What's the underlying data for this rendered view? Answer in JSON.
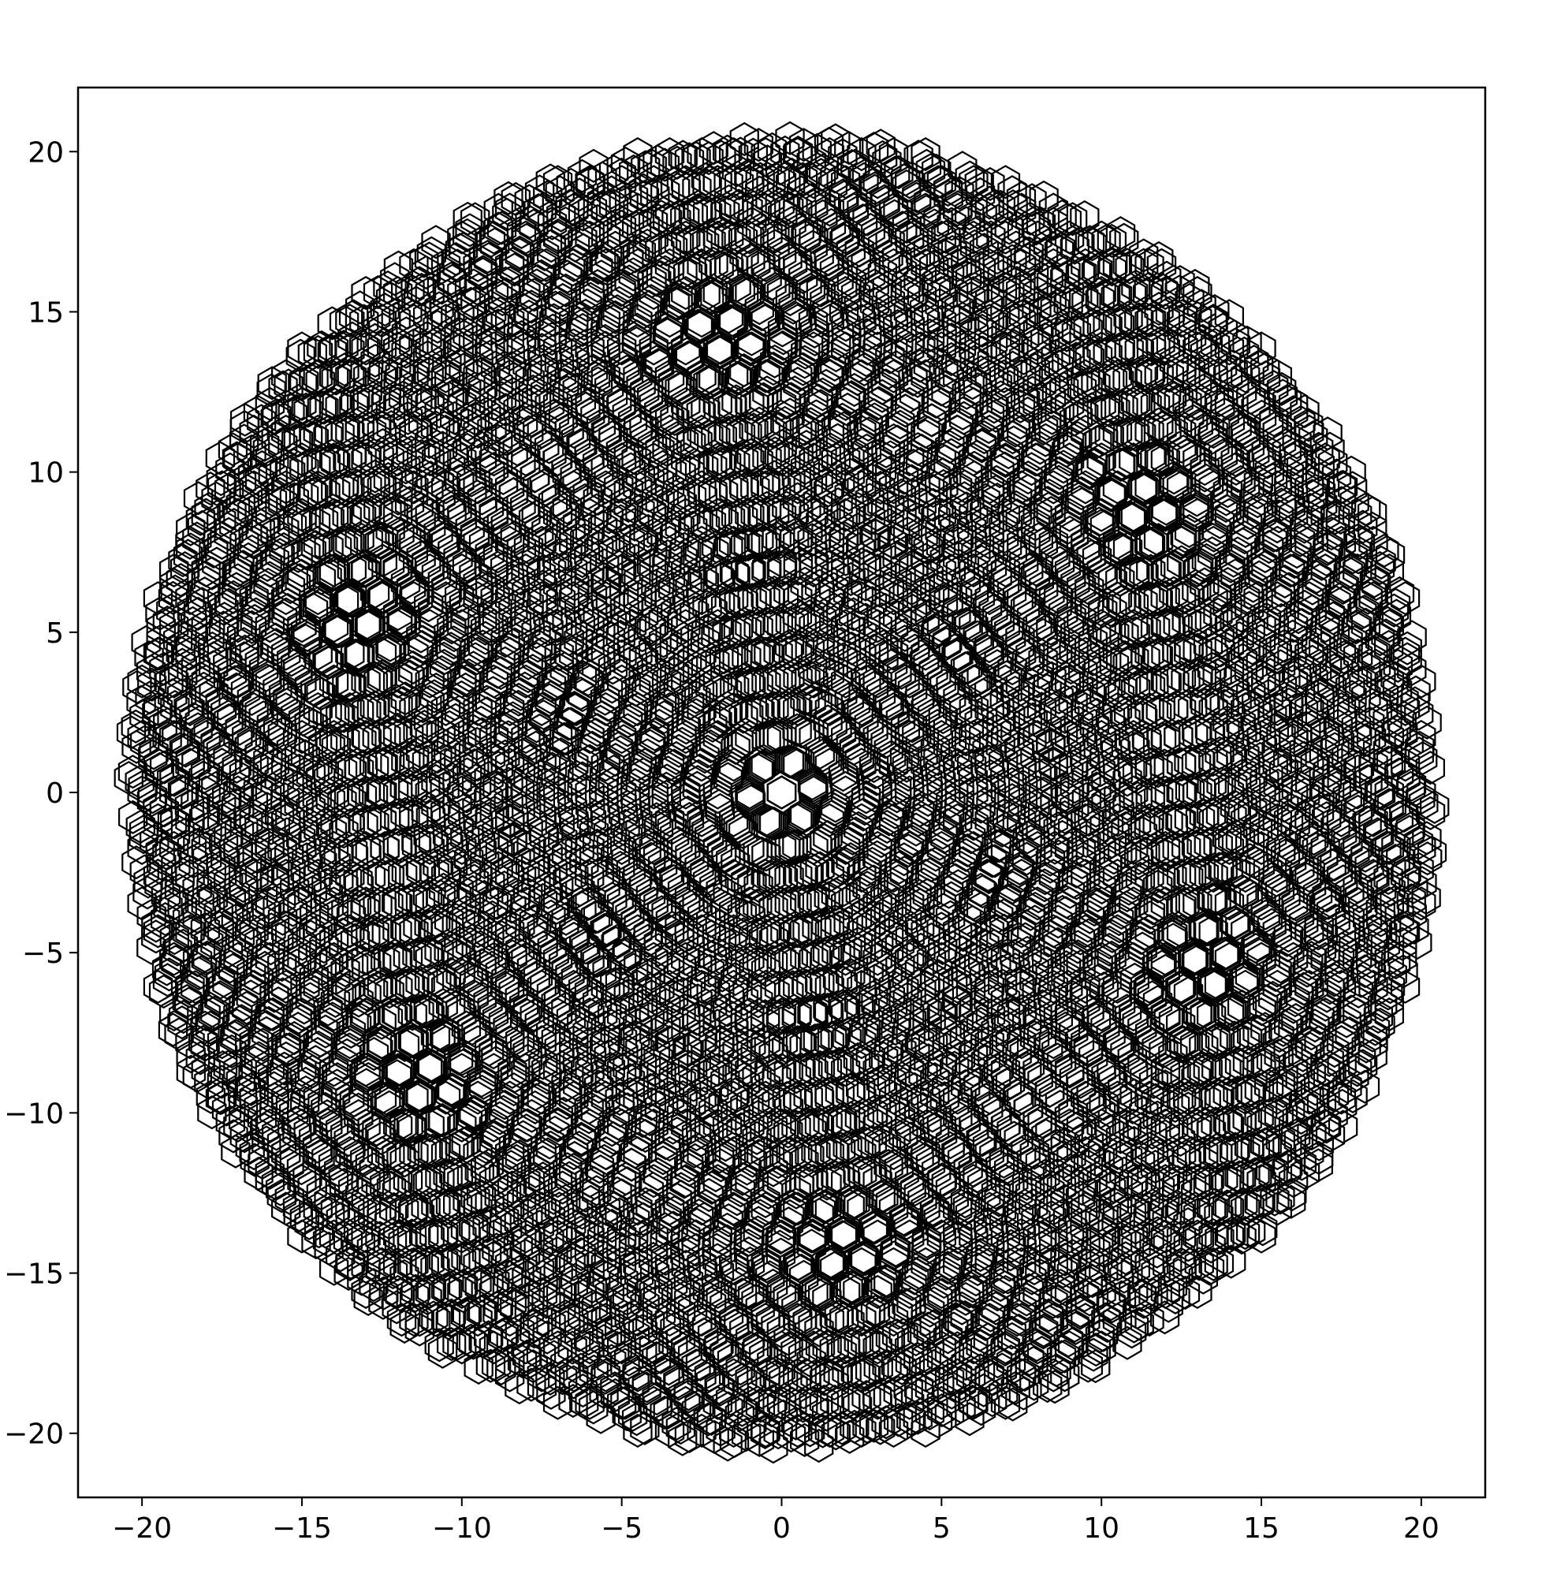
{
  "chart_data": {
    "type": "scatter",
    "marker": "hexagon-outline",
    "marker_color": "#000000",
    "title": "",
    "xlabel": "",
    "ylabel": "",
    "xlim": [
      -22,
      22
    ],
    "ylim": [
      -22,
      22
    ],
    "grid": false,
    "x_ticks": [
      -20,
      -15,
      -10,
      -5,
      0,
      5,
      10,
      15,
      20
    ],
    "y_ticks": [
      -20,
      -15,
      -10,
      -5,
      0,
      5,
      10,
      15,
      20
    ],
    "x_tick_labels": [
      "−20",
      "−15",
      "−10",
      "−5",
      "0",
      "5",
      "10",
      "15",
      "20"
    ],
    "y_tick_labels": [
      "−20",
      "−15",
      "−10",
      "−5",
      "0",
      "5",
      "10",
      "15",
      "20"
    ],
    "points": {
      "pattern": "hexagonal lattices rotated about the origin, overlaid and clipped to a disc",
      "disc_radius": 20.5,
      "lattice_spacing": 1.0,
      "hexagon_radius": 0.5,
      "lattice_count": 5,
      "lattice_rotations_deg": [
        0,
        4,
        8,
        12,
        16
      ]
    }
  }
}
